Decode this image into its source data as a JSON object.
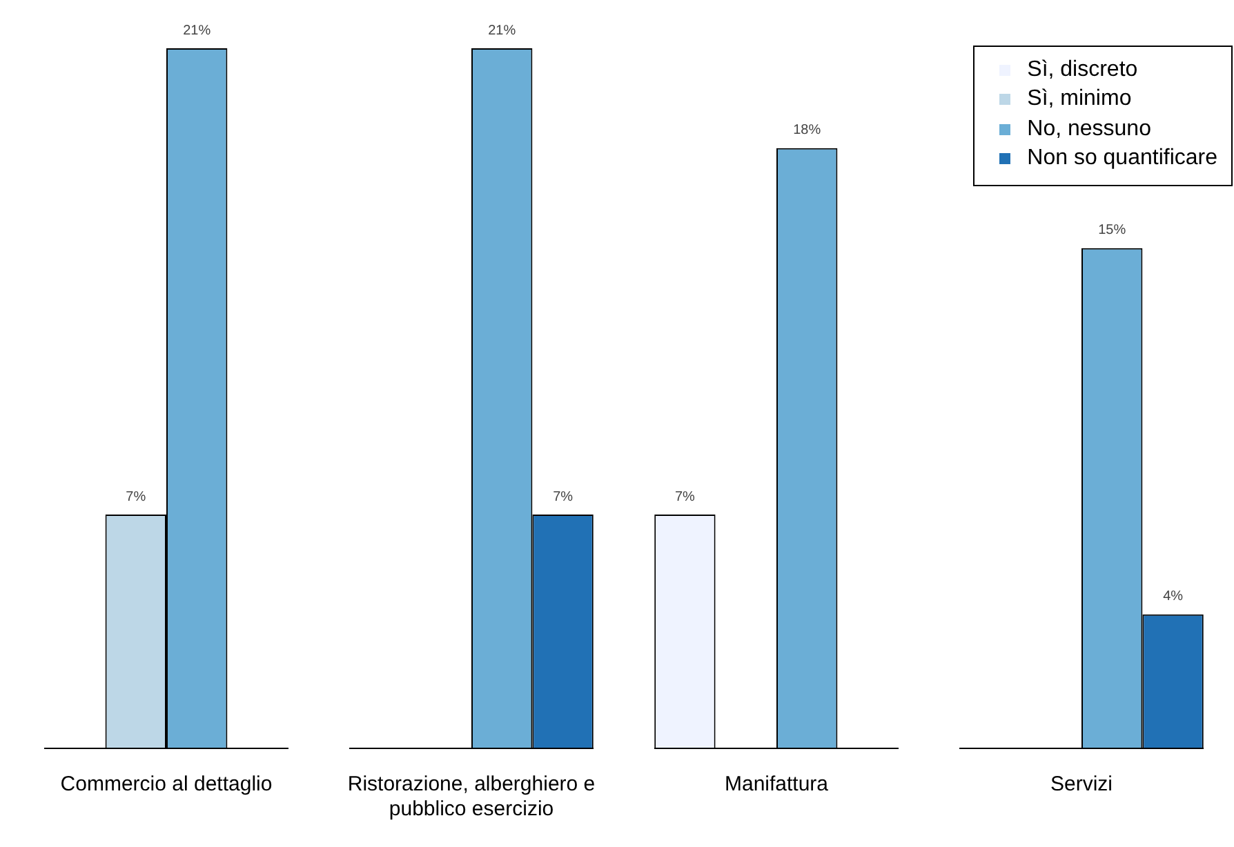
{
  "chart_data": {
    "type": "bar",
    "categories": [
      "Commercio al dettaglio",
      "Ristorazione, alberghiero e pubblico esercizio",
      "Manifattura",
      "Servizi"
    ],
    "series": [
      {
        "name": "Sì, discreto",
        "color": "#eff3ff",
        "values": [
          null,
          null,
          7,
          null
        ],
        "value_labels": [
          null,
          null,
          "7%",
          null
        ]
      },
      {
        "name": "Sì, minimo",
        "color": "#bdd7e7",
        "values": [
          7,
          null,
          null,
          null
        ],
        "value_labels": [
          "7%",
          null,
          null,
          null
        ]
      },
      {
        "name": "No, nessuno",
        "color": "#6baed6",
        "values": [
          21,
          21,
          18,
          15
        ],
        "value_labels": [
          "21%",
          "21%",
          "18%",
          "15%"
        ]
      },
      {
        "name": "Non so quantificare",
        "color": "#2171b5",
        "values": [
          null,
          7,
          null,
          4
        ],
        "value_labels": [
          null,
          "7%",
          null,
          "4%"
        ]
      }
    ],
    "legend": "top right",
    "grid": false
  }
}
